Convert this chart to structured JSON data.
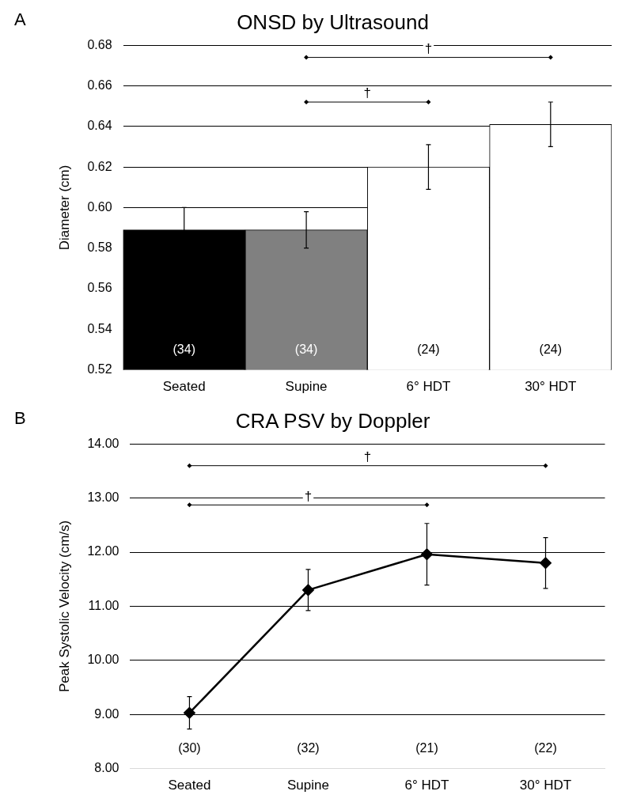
{
  "chart_data": [
    {
      "type": "bar",
      "title": "ONSD by Ultrasound",
      "ylabel": "Diameter (cm)",
      "categories": [
        "Seated",
        "Supine",
        "6° HDT",
        "30° HDT"
      ],
      "values": [
        0.589,
        0.589,
        0.62,
        0.641
      ],
      "colors": [
        "#000000",
        "#808080",
        "#ffffff",
        "#ffffff"
      ],
      "errors": [
        0.011,
        0.009,
        0.011,
        0.011
      ],
      "ylim": [
        0.52,
        0.68
      ],
      "yticks": [
        {
          "value": 0.52,
          "label": "0.52"
        },
        {
          "value": 0.54,
          "label": "0.54"
        },
        {
          "value": 0.56,
          "label": "0.56"
        },
        {
          "value": 0.58,
          "label": "0.58"
        },
        {
          "value": 0.6,
          "label": "0.60"
        },
        {
          "value": 0.62,
          "label": "0.62"
        },
        {
          "value": 0.64,
          "label": "0.64"
        },
        {
          "value": 0.66,
          "label": "0.66"
        },
        {
          "value": 0.68,
          "label": "0.68"
        }
      ],
      "grid": "y",
      "legend": false,
      "annotations": [
        "A",
        "(34)",
        "(34)",
        "(24)",
        "(24)",
        "†",
        "†"
      ]
    },
    {
      "type": "line",
      "title": "CRA PSV by Doppler",
      "ylabel": "Peak Systolic Velocity (cm/s)",
      "categories": [
        "Seated",
        "Supine",
        "6° HDT",
        "30° HDT"
      ],
      "series": [
        {
          "color": "#000000",
          "values": [
            9.03,
            11.3,
            11.96,
            11.8
          ],
          "errors": [
            0.3,
            0.38,
            0.57,
            0.47
          ]
        }
      ],
      "marker": "diamond",
      "line_style": "solid",
      "ylim": [
        8,
        14
      ],
      "yticks": [
        {
          "value": 8,
          "label": "8.00"
        },
        {
          "value": 9,
          "label": "9.00"
        },
        {
          "value": 10,
          "label": "10.00"
        },
        {
          "value": 11,
          "label": "11.00"
        },
        {
          "value": 12,
          "label": "12.00"
        },
        {
          "value": 13,
          "label": "13.00"
        },
        {
          "value": 14,
          "label": "14.00"
        }
      ],
      "grid": "y",
      "legend": false,
      "annotations": [
        "B",
        "(30)",
        "(32)",
        "(21)",
        "(22)",
        "†",
        "†"
      ]
    }
  ]
}
